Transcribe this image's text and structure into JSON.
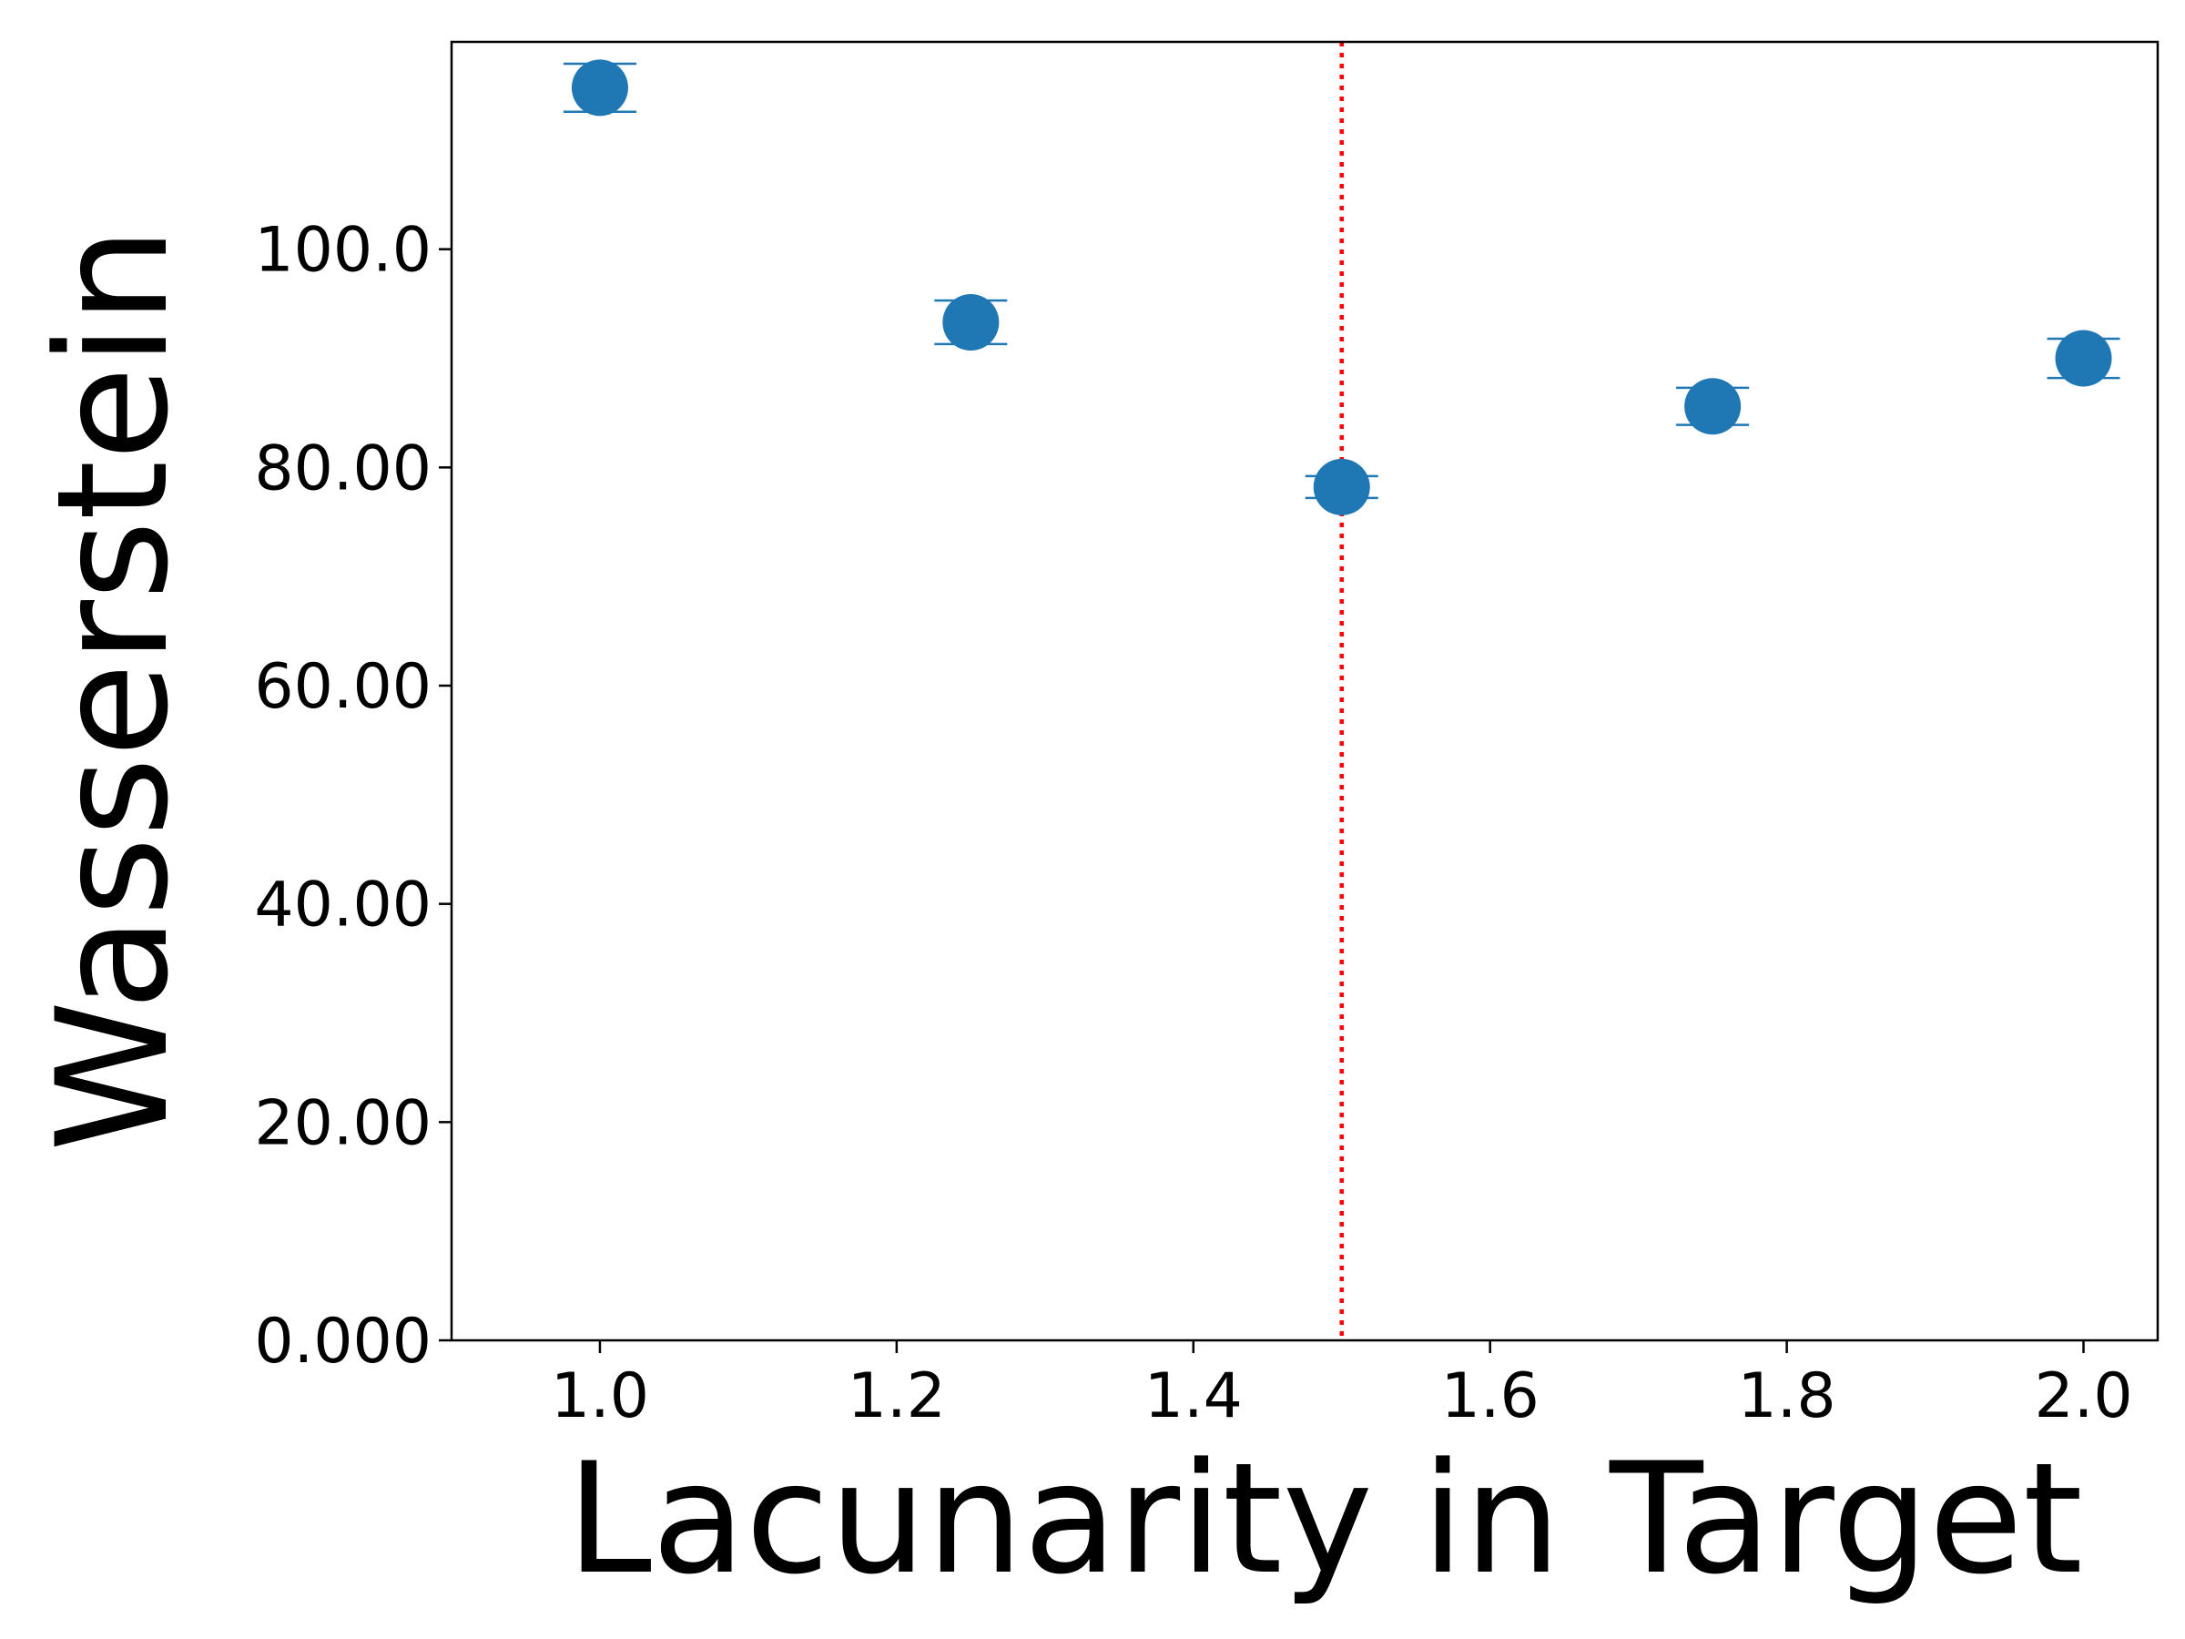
{
  "chart_data": {
    "type": "scatter",
    "title": "",
    "xlabel": "Lacunarity in Target",
    "ylabel": "Wasserstein",
    "xlim": [
      0.9,
      2.05
    ],
    "ylim": [
      0,
      119
    ],
    "x_ticks": [
      1.0,
      1.2,
      1.4,
      1.6,
      1.8,
      2.0
    ],
    "x_tick_labels": [
      "1.0",
      "1.2",
      "1.4",
      "1.6",
      "1.8",
      "2.0"
    ],
    "y_ticks": [
      0,
      20,
      40,
      60,
      80,
      100
    ],
    "y_tick_labels": [
      "0.000",
      "20.00",
      "40.00",
      "60.00",
      "80.00",
      "100.0"
    ],
    "grid": false,
    "legend": null,
    "series": [
      {
        "color": "#1f77b4",
        "points": [
          {
            "x": 1.0,
            "y": 114.8,
            "err": 2.2
          },
          {
            "x": 1.25,
            "y": 93.3,
            "err": 2.0
          },
          {
            "x": 1.5,
            "y": 78.2,
            "err": 1.0
          },
          {
            "x": 1.75,
            "y": 85.6,
            "err": 1.7
          },
          {
            "x": 2.0,
            "y": 90.0,
            "err": 1.8
          }
        ]
      }
    ],
    "reference_line": {
      "orientation": "vertical",
      "x": 1.5,
      "color": "#ff0000",
      "style": "dotted"
    }
  }
}
